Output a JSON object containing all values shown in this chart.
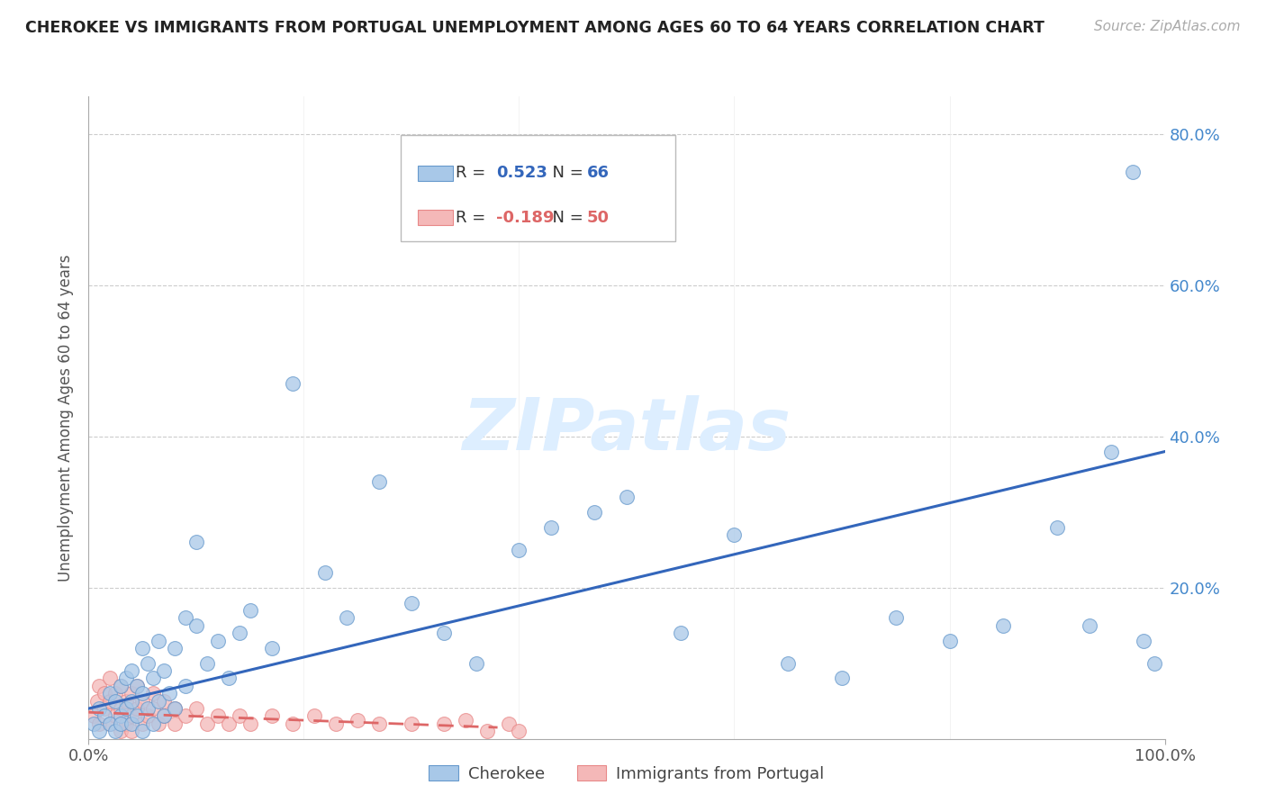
{
  "title": "CHEROKEE VS IMMIGRANTS FROM PORTUGAL UNEMPLOYMENT AMONG AGES 60 TO 64 YEARS CORRELATION CHART",
  "source": "Source: ZipAtlas.com",
  "ylabel": "Unemployment Among Ages 60 to 64 years",
  "xlim": [
    0.0,
    1.0
  ],
  "ylim": [
    0.0,
    0.85
  ],
  "cherokee_color": "#a8c8e8",
  "portugal_color": "#f4b8b8",
  "cherokee_edge_color": "#6699cc",
  "portugal_edge_color": "#e88888",
  "cherokee_line_color": "#3366bb",
  "portugal_line_color": "#dd6666",
  "legend_R1_val": "0.523",
  "legend_N1_val": "66",
  "legend_R2_val": "-0.189",
  "legend_N2_val": "50",
  "legend_R_color": "#3366bb",
  "legend_R2_color": "#dd6666",
  "legend_N_color": "#3366bb",
  "watermark": "ZIPatlas",
  "watermark_color": "#ddeeff",
  "cherokee_label": "Cherokee",
  "portugal_label": "Immigrants from Portugal",
  "ytick_color": "#4488cc",
  "cherokee_line_x": [
    0.0,
    1.0
  ],
  "cherokee_line_y": [
    0.04,
    0.38
  ],
  "portugal_line_x": [
    0.0,
    0.38
  ],
  "portugal_line_y": [
    0.035,
    0.015
  ],
  "cherokee_scatter_x": [
    0.005,
    0.01,
    0.01,
    0.015,
    0.02,
    0.02,
    0.025,
    0.025,
    0.03,
    0.03,
    0.03,
    0.035,
    0.035,
    0.04,
    0.04,
    0.04,
    0.045,
    0.045,
    0.05,
    0.05,
    0.05,
    0.055,
    0.055,
    0.06,
    0.06,
    0.065,
    0.065,
    0.07,
    0.07,
    0.075,
    0.08,
    0.08,
    0.09,
    0.09,
    0.1,
    0.1,
    0.11,
    0.12,
    0.13,
    0.14,
    0.15,
    0.17,
    0.19,
    0.22,
    0.24,
    0.27,
    0.3,
    0.33,
    0.36,
    0.4,
    0.43,
    0.47,
    0.5,
    0.55,
    0.6,
    0.65,
    0.7,
    0.75,
    0.8,
    0.85,
    0.9,
    0.93,
    0.95,
    0.97,
    0.98,
    0.99
  ],
  "cherokee_scatter_y": [
    0.02,
    0.01,
    0.04,
    0.03,
    0.02,
    0.06,
    0.01,
    0.05,
    0.03,
    0.07,
    0.02,
    0.04,
    0.08,
    0.02,
    0.05,
    0.09,
    0.03,
    0.07,
    0.01,
    0.06,
    0.12,
    0.04,
    0.1,
    0.02,
    0.08,
    0.05,
    0.13,
    0.03,
    0.09,
    0.06,
    0.04,
    0.12,
    0.07,
    0.16,
    0.15,
    0.26,
    0.1,
    0.13,
    0.08,
    0.14,
    0.17,
    0.12,
    0.47,
    0.22,
    0.16,
    0.34,
    0.18,
    0.14,
    0.1,
    0.25,
    0.28,
    0.3,
    0.32,
    0.14,
    0.27,
    0.1,
    0.08,
    0.16,
    0.13,
    0.15,
    0.28,
    0.15,
    0.38,
    0.75,
    0.13,
    0.1
  ],
  "portugal_scatter_x": [
    0.005,
    0.008,
    0.01,
    0.01,
    0.015,
    0.015,
    0.02,
    0.02,
    0.02,
    0.025,
    0.025,
    0.03,
    0.03,
    0.03,
    0.035,
    0.035,
    0.04,
    0.04,
    0.04,
    0.045,
    0.045,
    0.05,
    0.05,
    0.055,
    0.06,
    0.06,
    0.065,
    0.07,
    0.07,
    0.08,
    0.08,
    0.09,
    0.1,
    0.11,
    0.12,
    0.13,
    0.14,
    0.15,
    0.17,
    0.19,
    0.21,
    0.23,
    0.25,
    0.27,
    0.3,
    0.33,
    0.35,
    0.37,
    0.39,
    0.4
  ],
  "portugal_scatter_y": [
    0.03,
    0.05,
    0.02,
    0.07,
    0.04,
    0.06,
    0.02,
    0.05,
    0.08,
    0.03,
    0.06,
    0.01,
    0.04,
    0.07,
    0.02,
    0.05,
    0.03,
    0.06,
    0.01,
    0.04,
    0.07,
    0.02,
    0.05,
    0.03,
    0.04,
    0.06,
    0.02,
    0.03,
    0.05,
    0.02,
    0.04,
    0.03,
    0.04,
    0.02,
    0.03,
    0.02,
    0.03,
    0.02,
    0.03,
    0.02,
    0.03,
    0.02,
    0.025,
    0.02,
    0.02,
    0.02,
    0.025,
    0.01,
    0.02,
    0.01
  ]
}
